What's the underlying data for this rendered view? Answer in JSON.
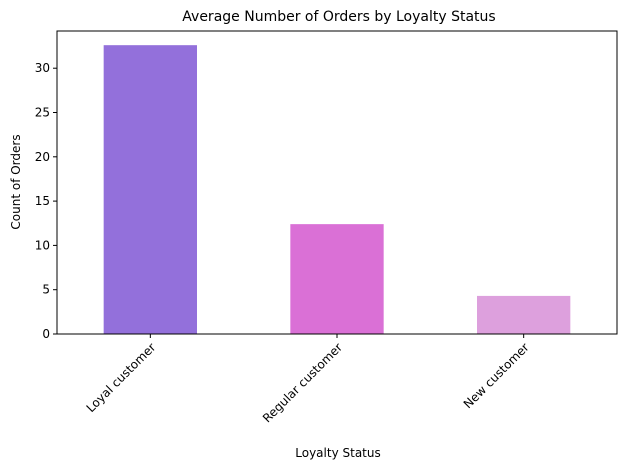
{
  "chart_data": {
    "type": "bar",
    "title": "Average Number of Orders by Loyalty Status",
    "xlabel": "Loyalty Status",
    "ylabel": "Count of Orders",
    "categories": [
      "Loyal customer",
      "Regular customer",
      "New customer"
    ],
    "values": [
      32.6,
      12.4,
      4.3
    ],
    "colors": [
      "#9370DB",
      "#DA70D6",
      "#DDA0DD"
    ],
    "ylim": [
      0,
      34.2
    ],
    "yticks": [
      0,
      5,
      10,
      15,
      20,
      25,
      30
    ],
    "grid": false,
    "legend": "none"
  }
}
